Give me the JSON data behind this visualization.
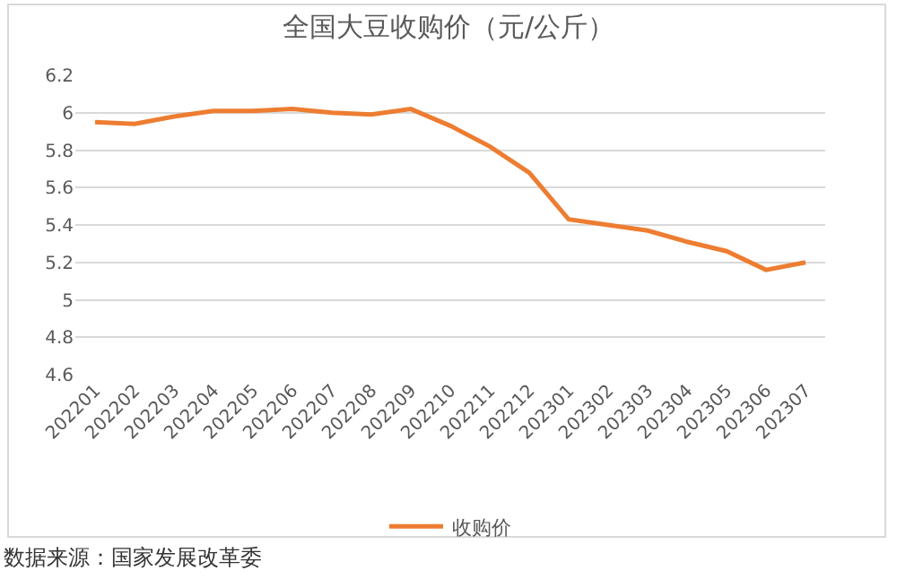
{
  "chart_data": {
    "type": "line",
    "title": "全国大豆收购价（元/公斤）",
    "categories": [
      "202201",
      "202202",
      "202203",
      "202204",
      "202205",
      "202206",
      "202207",
      "202208",
      "202209",
      "202210",
      "202211",
      "202212",
      "202301",
      "202302",
      "202303",
      "202304",
      "202305",
      "202306",
      "202307"
    ],
    "series": [
      {
        "name": "收购价",
        "color": "#ed7d31",
        "values": [
          5.95,
          5.94,
          5.98,
          6.01,
          6.01,
          6.02,
          6.0,
          5.99,
          6.02,
          5.93,
          5.82,
          5.68,
          5.43,
          5.4,
          5.37,
          5.31,
          5.26,
          5.16,
          5.2
        ]
      }
    ],
    "ylim": [
      4.6,
      6.2
    ],
    "yticks": [
      4.6,
      4.8,
      5,
      5.2,
      5.4,
      5.6,
      5.8,
      6,
      6.2
    ],
    "grid": "y",
    "legend": "bottom",
    "marker": "none",
    "line_style": "solid",
    "annotations": [
      "数据来源：国家发展改革委"
    ]
  }
}
